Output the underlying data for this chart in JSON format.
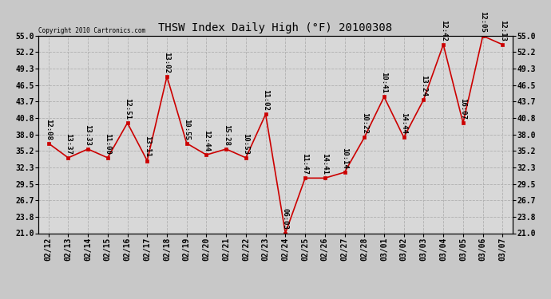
{
  "title": "THSW Index Daily High (°F) 20100308",
  "copyright": "Copyright 2010 Cartronics.com",
  "background_color": "#c8c8c8",
  "plot_bg_color": "#d8d8d8",
  "line_color": "#cc0000",
  "marker_color": "#cc0000",
  "grid_color": "#b0b0b0",
  "dates": [
    "02/12",
    "02/13",
    "02/14",
    "02/15",
    "02/16",
    "02/17",
    "02/18",
    "02/19",
    "02/20",
    "02/21",
    "02/22",
    "02/23",
    "02/24",
    "02/25",
    "02/26",
    "02/27",
    "02/28",
    "03/01",
    "03/02",
    "03/03",
    "03/04",
    "03/05",
    "03/06",
    "03/07"
  ],
  "values": [
    36.5,
    34.0,
    35.5,
    34.0,
    40.0,
    33.5,
    48.0,
    36.5,
    34.5,
    35.5,
    34.0,
    41.5,
    21.0,
    30.5,
    30.5,
    31.5,
    37.5,
    44.5,
    37.5,
    44.0,
    53.5,
    40.0,
    55.0,
    53.5
  ],
  "time_labels": [
    "12:08",
    "13:37",
    "13:33",
    "11:00",
    "12:51",
    "13:11",
    "13:02",
    "10:55",
    "12:44",
    "15:28",
    "10:53",
    "11:02",
    "06:03",
    "11:47",
    "14:41",
    "10:14",
    "10:22",
    "10:41",
    "14:44",
    "13:24",
    "12:42",
    "16:07",
    "12:05",
    "12:13"
  ],
  "ylim": [
    21.0,
    55.0
  ],
  "yticks": [
    21.0,
    23.8,
    26.7,
    29.5,
    32.3,
    35.2,
    38.0,
    40.8,
    43.7,
    46.5,
    49.3,
    52.2,
    55.0
  ],
  "title_fontsize": 10,
  "tick_fontsize": 7,
  "label_fontsize": 6.5
}
